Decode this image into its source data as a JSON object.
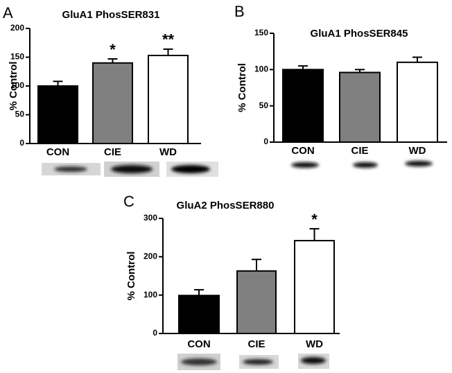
{
  "chart_data": [
    {
      "type": "bar",
      "panel": "A",
      "title": "GluA1 PhosSER831",
      "ylabel": "% Control",
      "categories": [
        "CON",
        "CIE",
        "WD"
      ],
      "values": [
        100,
        140,
        153
      ],
      "errors": [
        8,
        7,
        11
      ],
      "colors": [
        "#000000",
        "#808080",
        "#ffffff"
      ],
      "ylim": [
        0,
        200
      ],
      "yticks": [
        0,
        50,
        100,
        150,
        200
      ],
      "annotations": [
        null,
        "*",
        "**"
      ]
    },
    {
      "type": "bar",
      "panel": "B",
      "title": "GluA1 PhosSER845",
      "ylabel": "% Control",
      "categories": [
        "CON",
        "CIE",
        "WD"
      ],
      "values": [
        100,
        96,
        110
      ],
      "errors": [
        5,
        4,
        7
      ],
      "colors": [
        "#000000",
        "#808080",
        "#ffffff"
      ],
      "ylim": [
        0,
        150
      ],
      "yticks": [
        0,
        50,
        100,
        150
      ],
      "annotations": [
        null,
        null,
        null
      ]
    },
    {
      "type": "bar",
      "panel": "C",
      "title": "GluA2 PhosSER880",
      "ylabel": "% Control",
      "categories": [
        "CON",
        "CIE",
        "WD"
      ],
      "values": [
        99,
        163,
        242
      ],
      "errors": [
        15,
        30,
        31
      ],
      "colors": [
        "#000000",
        "#808080",
        "#ffffff"
      ],
      "ylim": [
        0,
        300
      ],
      "yticks": [
        0,
        100,
        200,
        300
      ],
      "annotations": [
        null,
        null,
        "*"
      ]
    }
  ]
}
